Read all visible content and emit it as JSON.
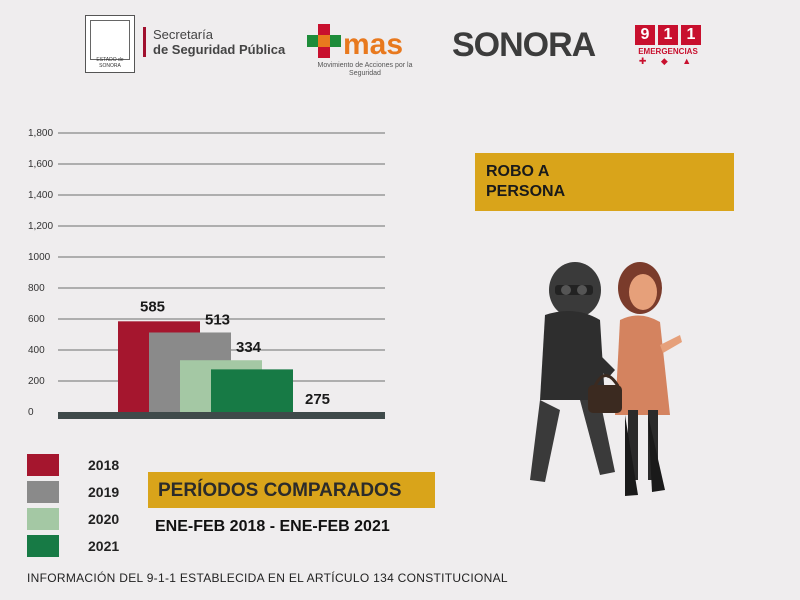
{
  "header": {
    "seal_caption": "ESTADO de SONORA",
    "ssp_line1": "Secretaría",
    "ssp_line2": "de Seguridad Pública",
    "mas_logo": "+mas",
    "mas_caption": "Movimiento de Acciones por la Seguridad",
    "sonora": "SONORA",
    "e911_digits": [
      "9",
      "1",
      "1"
    ],
    "e911_label": "EMERGENCIAS",
    "e911_icons": "✚ ◆ ▲",
    "colors": {
      "red": "#c8102e",
      "green": "#1e8c3a",
      "orange": "#e8791e",
      "yellow": "#e8b01e"
    }
  },
  "chart_data": {
    "type": "bar",
    "categories": [
      "2018",
      "2019",
      "2020",
      "2021"
    ],
    "values": [
      585,
      513,
      334,
      275
    ],
    "data_labels": [
      "585",
      "513",
      "334",
      "275"
    ],
    "colors": [
      "#a5162e",
      "#8a8a8a",
      "#a4c8a4",
      "#177a45"
    ],
    "y_ticks": [
      "0",
      "200",
      "400",
      "600",
      "800",
      "1000",
      "1,200",
      "1,400",
      "1,600",
      "1,800"
    ],
    "ylim": [
      0,
      1800
    ],
    "grid": true,
    "legend_position": "bottom-left"
  },
  "robo": {
    "label": "ROBO A\nPERSONA"
  },
  "periodos": {
    "title": "PERÍODOS COMPARADOS",
    "range": "ENE-FEB 2018 - ENE-FEB 2021"
  },
  "footer": "INFORMACIÓN DEL 9-1-1 ESTABLECIDA EN EL ARTÍCULO 134 CONSTITUCIONAL"
}
